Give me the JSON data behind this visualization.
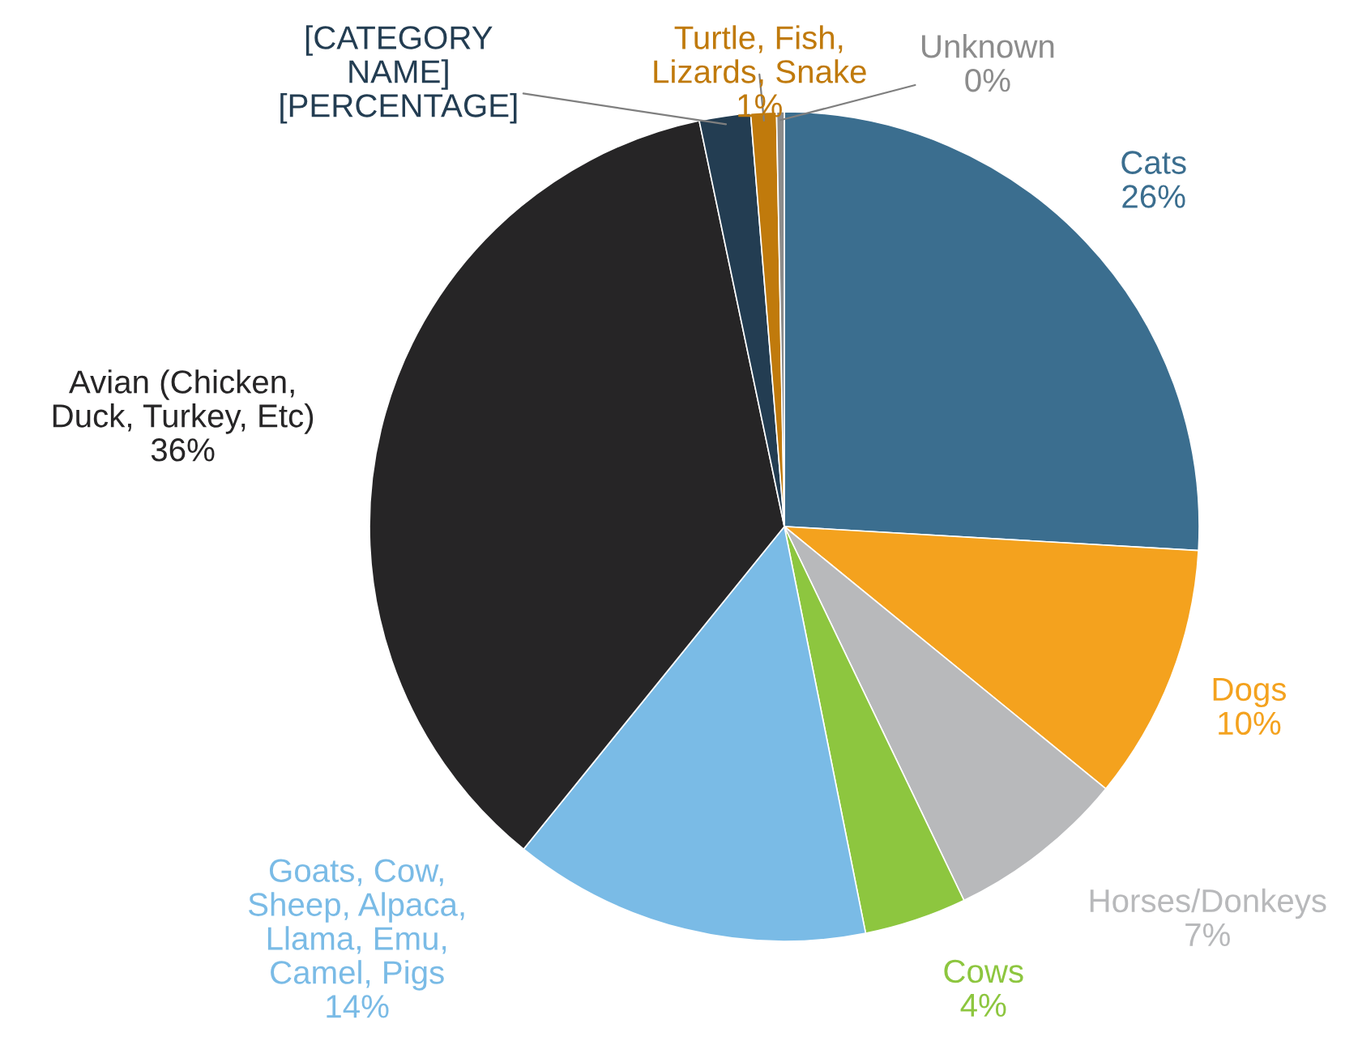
{
  "chart_data": {
    "type": "pie",
    "categories": [
      "Cats",
      "Dogs",
      "Horses/Donkeys",
      "Cows",
      "Goats, Cow,\nSheep, Alpaca,\nLlama, Emu,\nCamel, Pigs",
      "Avian (Chicken,\nDuck, Turkey, Etc)",
      "[CATEGORY\nNAME]",
      "Turtle, Fish,\nLizards, Snake",
      "Unknown"
    ],
    "values": [
      26,
      10,
      7,
      4,
      14,
      36,
      2,
      1,
      0.3
    ],
    "value_labels": [
      "26%",
      "10%",
      "7%",
      "4%",
      "14%",
      "36%",
      "[PERCENTAGE]",
      "1%",
      "0%"
    ],
    "colors": [
      "#3b6e8f",
      "#f4a21e",
      "#b8b9bb",
      "#8dc63f",
      "#7abbe6",
      "#262526",
      "#233d52",
      "#c07a0c",
      "#8c8c8c"
    ]
  }
}
